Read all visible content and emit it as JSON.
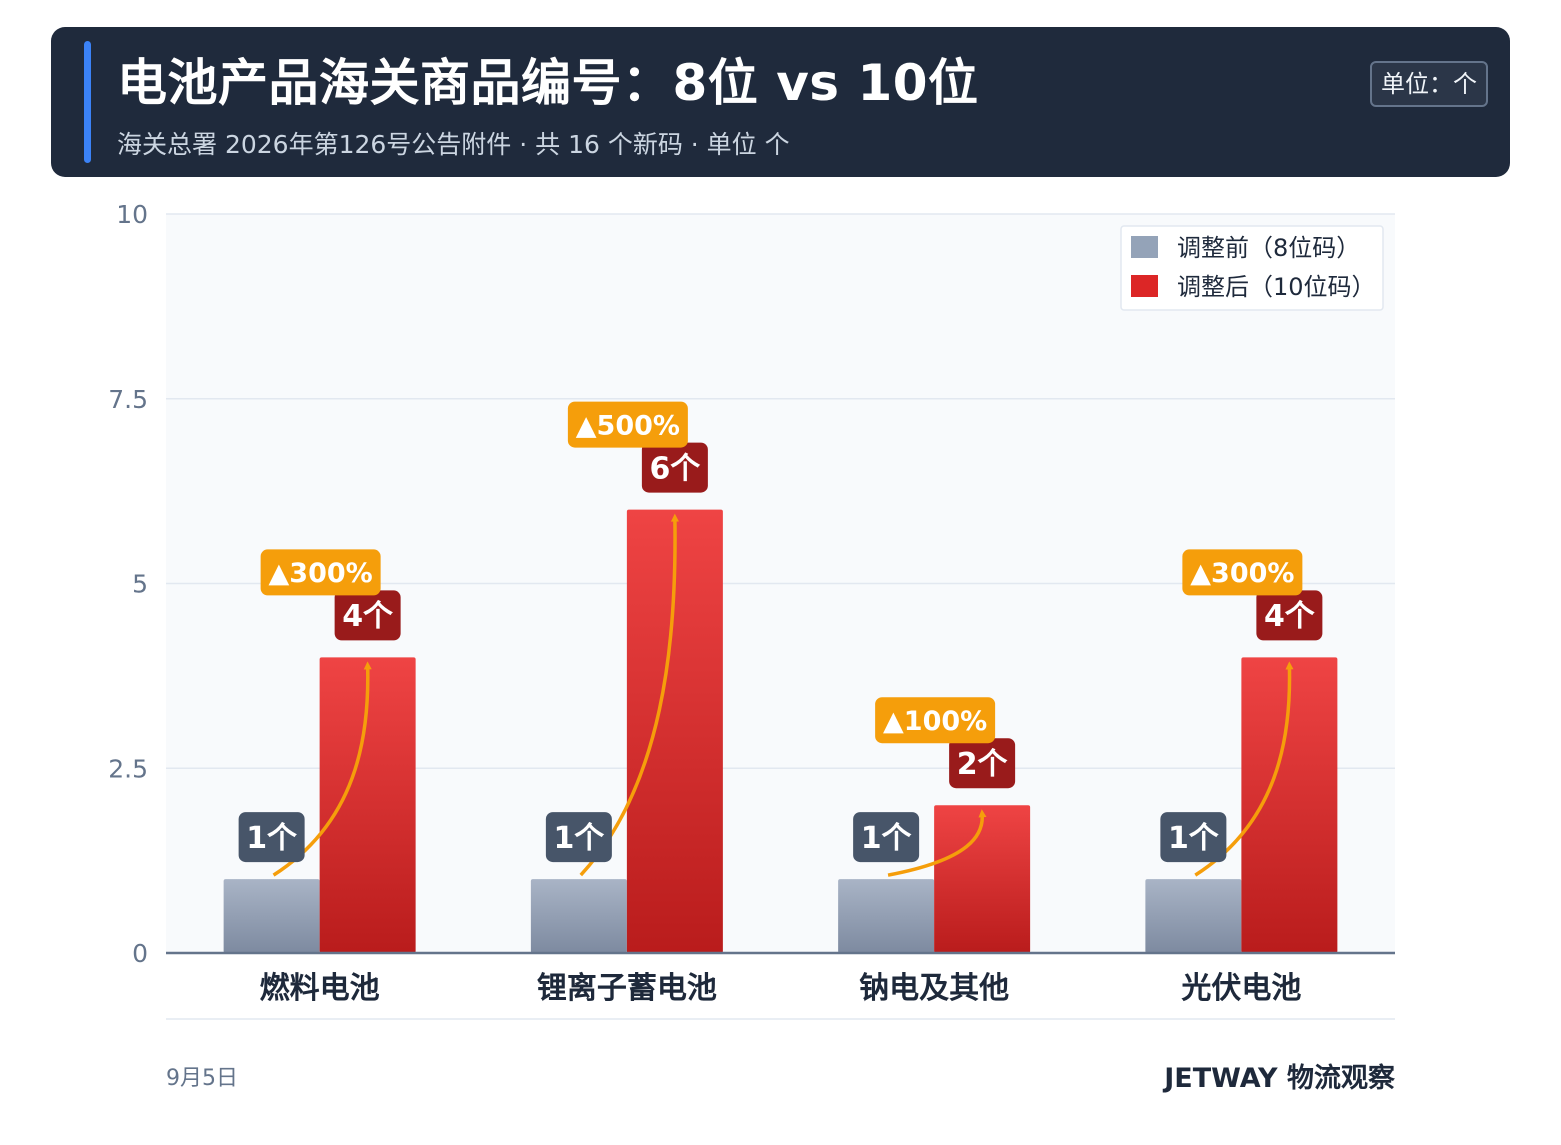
{
  "header": {
    "title": "电池产品海关商品编号：8位 vs 10位",
    "subtitle": "海关总署 2026年第126号公告附件 · 共 16 个新码 · 单位 个",
    "unit_badge": "单位：个"
  },
  "footer": {
    "date": "9月5日",
    "brand": "JETWAY 物流观察"
  },
  "chart_data": {
    "type": "bar",
    "categories": [
      "燃料电池",
      "锂离子蓄电池",
      "钠电及其他",
      "光伏电池"
    ],
    "series": [
      {
        "name": "调整前（8位码）",
        "values": [
          1,
          1,
          1,
          1
        ],
        "color": "#94a3b8"
      },
      {
        "name": "调整后（10位码）",
        "values": [
          4,
          6,
          2,
          4
        ],
        "color": "#dc2626"
      }
    ],
    "value_labels_before": [
      "1个",
      "1个",
      "1个",
      "1个"
    ],
    "value_labels_after": [
      "4个",
      "6个",
      "2个",
      "4个"
    ],
    "growth_labels": [
      "▲300%",
      "▲500%",
      "▲100%",
      "▲300%"
    ],
    "ylim": [
      0,
      10
    ],
    "yticks": [
      0,
      2.5,
      5,
      7.5,
      10
    ],
    "ytick_labels": [
      "0",
      "2.5",
      "5",
      "7.5",
      "10"
    ],
    "grid": true,
    "legend_position": "top-right",
    "colors": {
      "before_label_bg": "#475569",
      "after_label_bg": "#991b1b",
      "growth_bg": "#f59e0b",
      "arrow": "#f59e0b"
    }
  }
}
